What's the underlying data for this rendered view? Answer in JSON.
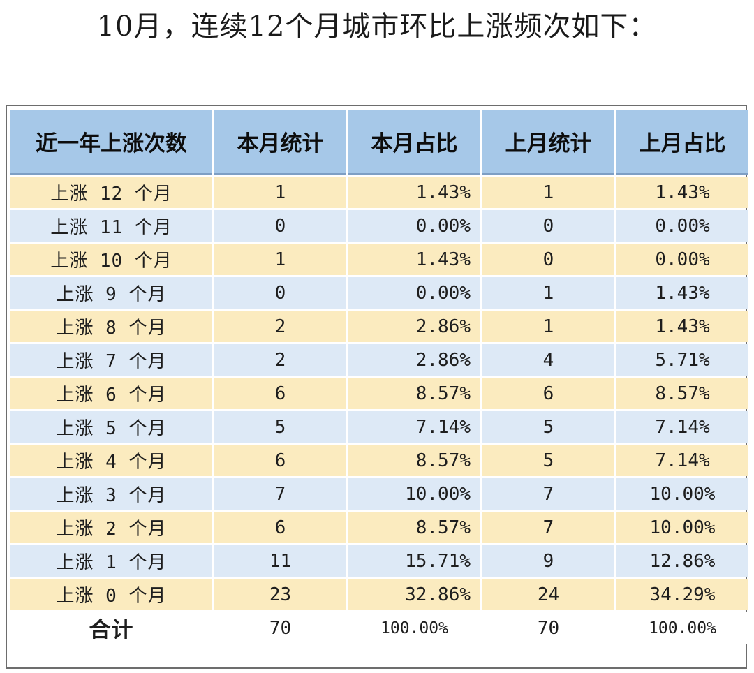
{
  "title": "10月，连续12个月城市环比上涨频次如下：",
  "table": {
    "headers": [
      "近一年上涨次数",
      "本月统计",
      "本月占比",
      "上月统计",
      "上月占比"
    ],
    "rows": [
      {
        "label": "上涨 12 个月",
        "cur_count": "1",
        "cur_pct": "1.43%",
        "prev_count": "1",
        "prev_pct": "1.43%"
      },
      {
        "label": "上涨 11 个月",
        "cur_count": "0",
        "cur_pct": "0.00%",
        "prev_count": "0",
        "prev_pct": "0.00%"
      },
      {
        "label": "上涨 10 个月",
        "cur_count": "1",
        "cur_pct": "1.43%",
        "prev_count": "0",
        "prev_pct": "0.00%"
      },
      {
        "label": "上涨 9 个月",
        "cur_count": "0",
        "cur_pct": "0.00%",
        "prev_count": "1",
        "prev_pct": "1.43%"
      },
      {
        "label": "上涨 8 个月",
        "cur_count": "2",
        "cur_pct": "2.86%",
        "prev_count": "1",
        "prev_pct": "1.43%"
      },
      {
        "label": "上涨 7 个月",
        "cur_count": "2",
        "cur_pct": "2.86%",
        "prev_count": "4",
        "prev_pct": "5.71%"
      },
      {
        "label": "上涨 6 个月",
        "cur_count": "6",
        "cur_pct": "8.57%",
        "prev_count": "6",
        "prev_pct": "8.57%"
      },
      {
        "label": "上涨 5 个月",
        "cur_count": "5",
        "cur_pct": "7.14%",
        "prev_count": "5",
        "prev_pct": "7.14%"
      },
      {
        "label": "上涨 4 个月",
        "cur_count": "6",
        "cur_pct": "8.57%",
        "prev_count": "5",
        "prev_pct": "7.14%"
      },
      {
        "label": "上涨 3 个月",
        "cur_count": "7",
        "cur_pct": "10.00%",
        "prev_count": "7",
        "prev_pct": "10.00%"
      },
      {
        "label": "上涨 2 个月",
        "cur_count": "6",
        "cur_pct": "8.57%",
        "prev_count": "7",
        "prev_pct": "10.00%"
      },
      {
        "label": "上涨 1 个月",
        "cur_count": "11",
        "cur_pct": "15.71%",
        "prev_count": "9",
        "prev_pct": "12.86%"
      },
      {
        "label": "上涨 0 个月",
        "cur_count": "23",
        "cur_pct": "32.86%",
        "prev_count": "24",
        "prev_pct": "34.29%"
      }
    ],
    "total": {
      "label": "合计",
      "cur_count": "70",
      "cur_pct": "100.00%",
      "prev_count": "70",
      "prev_pct": "100.00%"
    }
  },
  "colors": {
    "header_bg": "#a6c8e8",
    "row_odd_bg": "#fbebbf",
    "row_even_bg": "#dde9f6",
    "total_bg": "#ffffff",
    "frame_border": "#6d6d6d"
  }
}
